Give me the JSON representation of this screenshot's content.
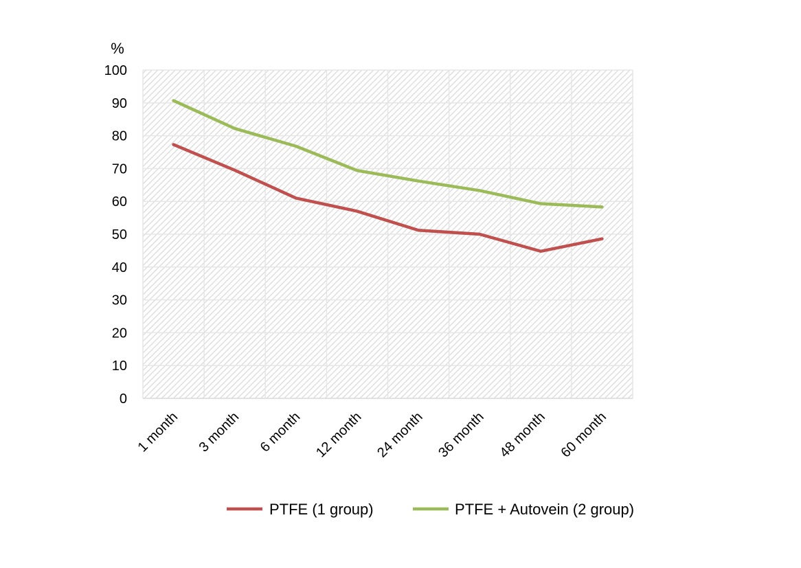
{
  "chart_data": {
    "type": "line",
    "categories": [
      "1 month",
      "3 month",
      "6 month",
      "12 month",
      "24 month",
      "36 month",
      "48 month",
      "60 month"
    ],
    "series": [
      {
        "name": "PTFE (1 group)",
        "color": "#c0504d",
        "values": [
          77.3,
          69.5,
          61.0,
          57.0,
          51.2,
          50.0,
          44.8,
          48.6
        ]
      },
      {
        "name": "PTFE + Autovein (2 group)",
        "color": "#9bbb59",
        "values": [
          90.7,
          82.2,
          76.8,
          69.4,
          66.2,
          63.3,
          59.3,
          58.3
        ]
      }
    ],
    "yunit": "%",
    "ylim": [
      0,
      100
    ],
    "yticks": [
      "0",
      "10",
      "20",
      "30",
      "40",
      "50",
      "60",
      "70",
      "80",
      "90",
      "100"
    ],
    "grid": true,
    "legend": "bottom"
  }
}
